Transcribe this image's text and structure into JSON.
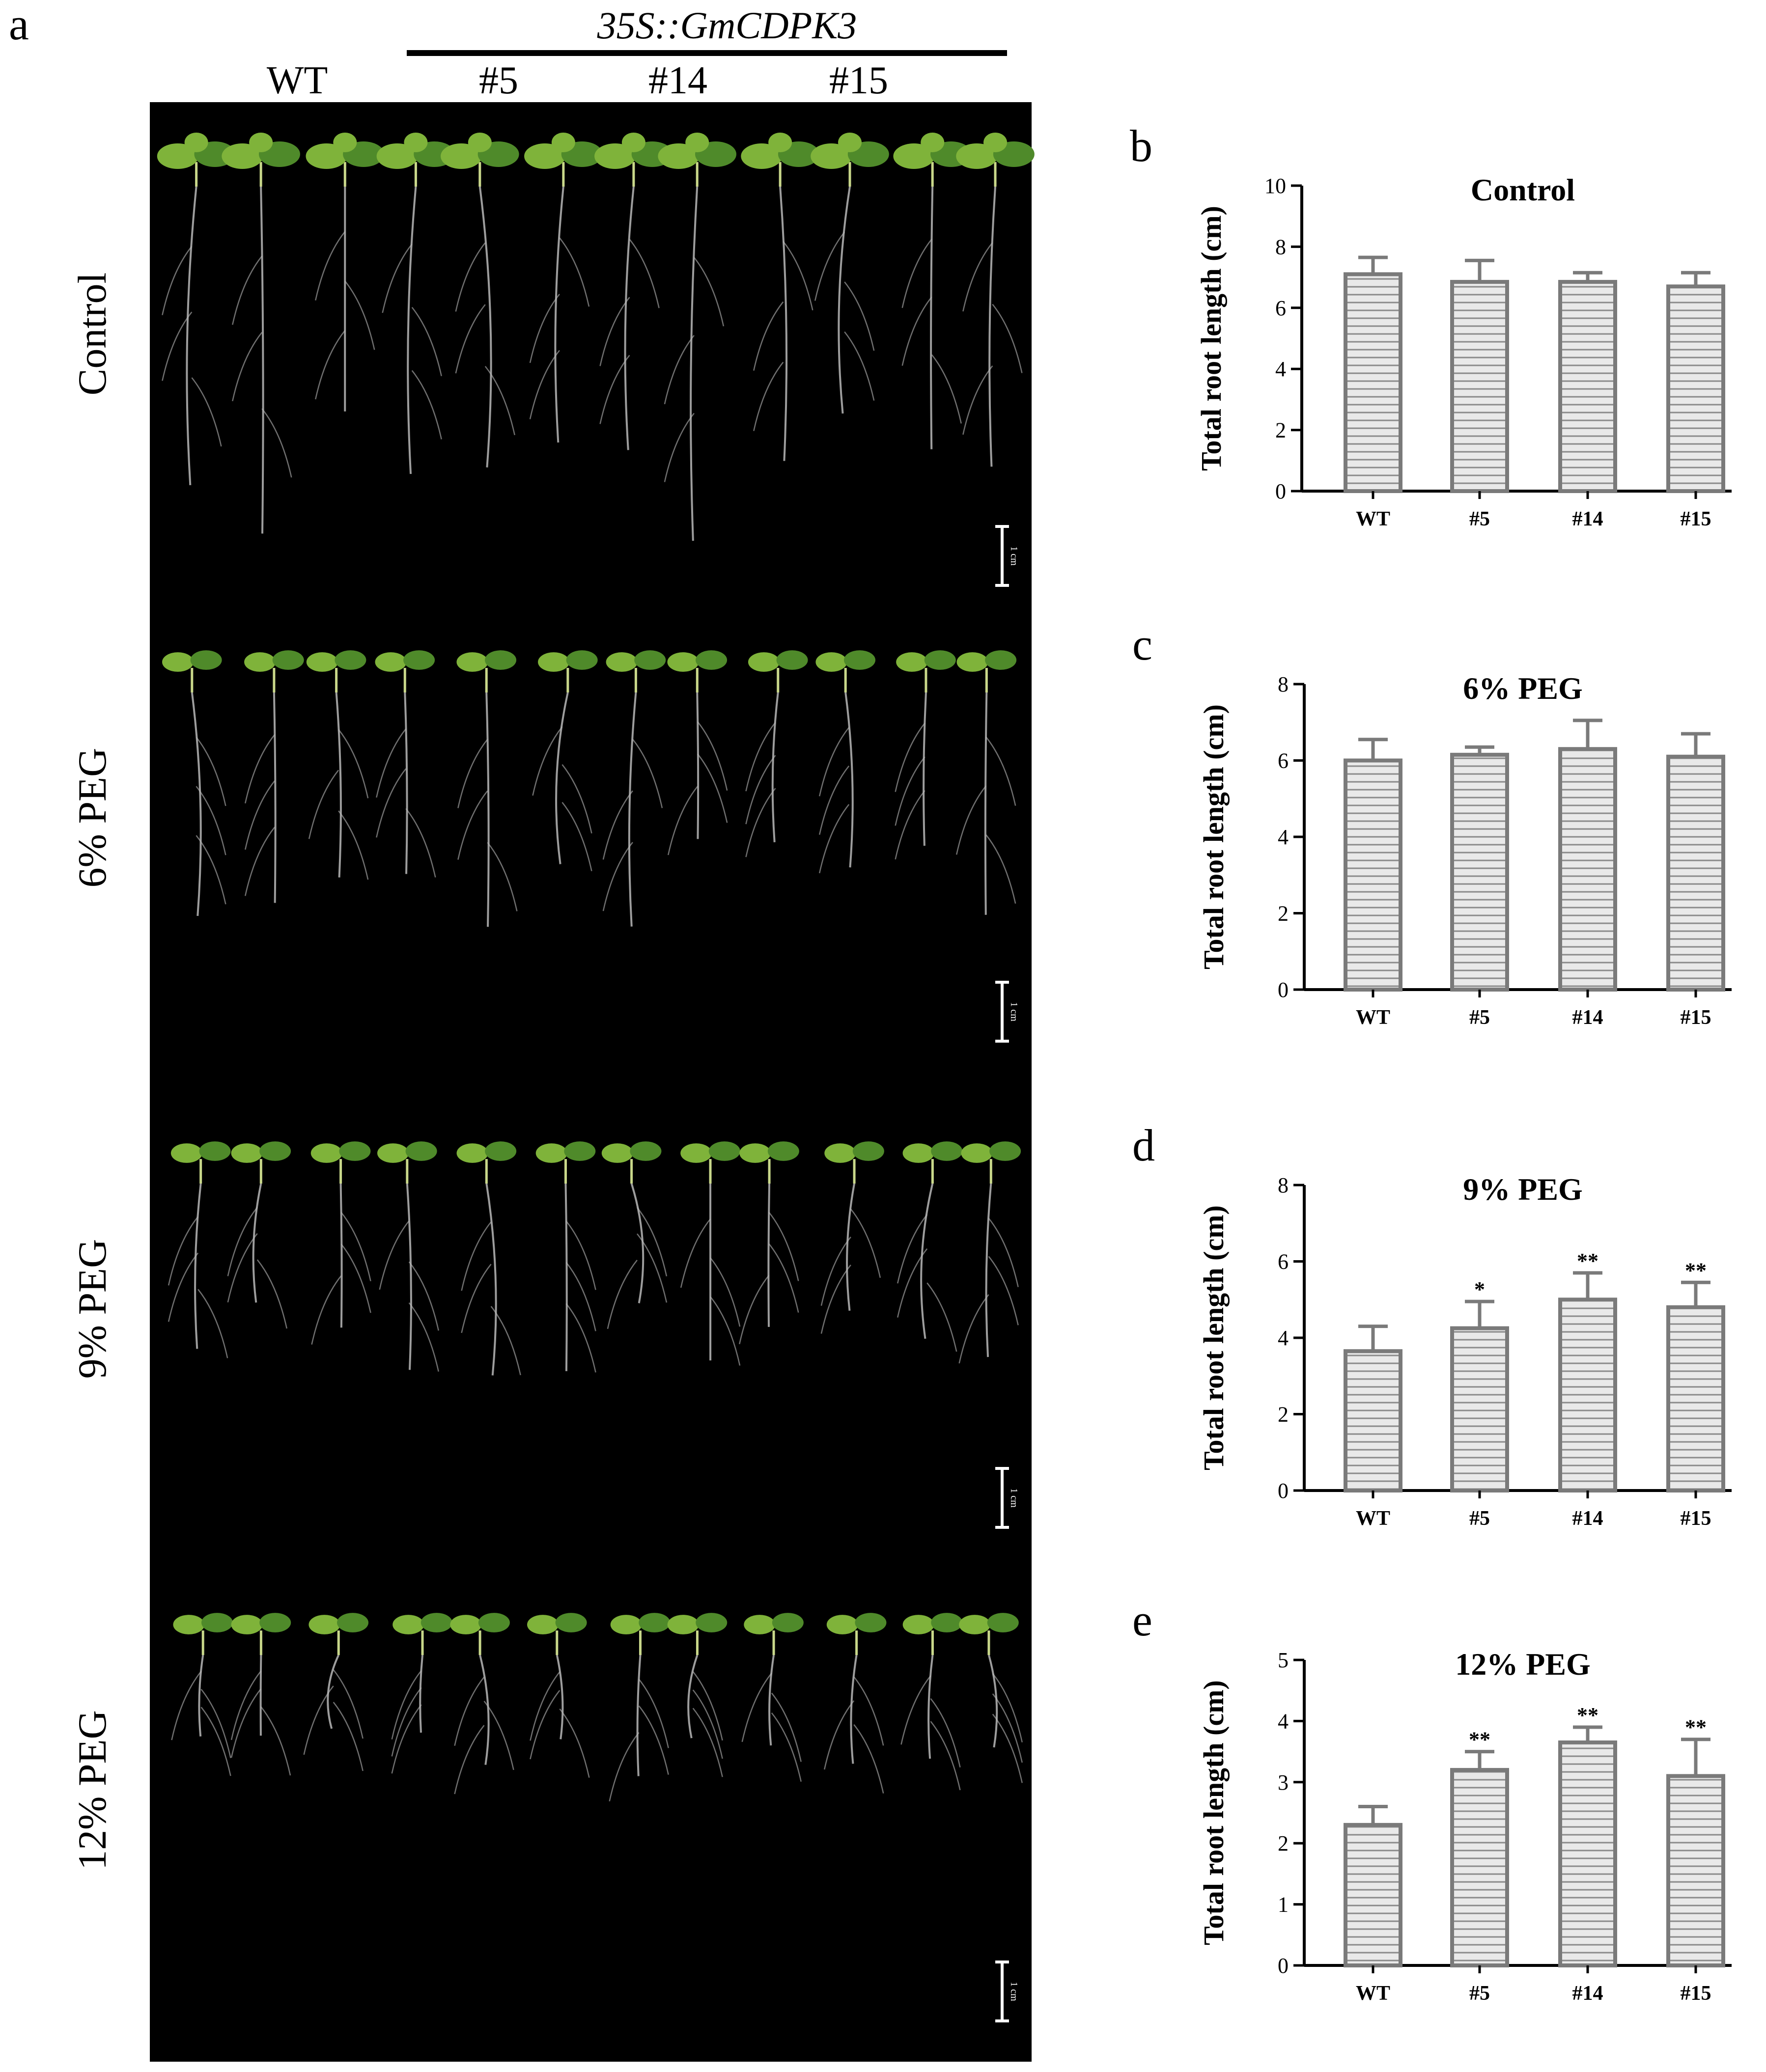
{
  "panel_a": {
    "letter": "a",
    "construct": "35S::GmCDPK3",
    "genotypes": [
      "WT",
      "#5",
      "#14",
      "#15"
    ],
    "rows": [
      {
        "label": "Control",
        "scale": "1 cm"
      },
      {
        "label": "6% PEG",
        "scale": "1 cm"
      },
      {
        "label": "9% PEG",
        "scale": "1 cm"
      },
      {
        "label": "12% PEG",
        "scale": "1 cm"
      }
    ],
    "colors": {
      "background": "#000000",
      "leaf": "#7fb33a",
      "leaf_dark": "#4f8a2a",
      "root": "#b9b9b9"
    }
  },
  "chart_data": [
    {
      "letter": "b",
      "type": "bar",
      "title": "Control",
      "ylabel": "Total root length (cm)",
      "categories": [
        "WT",
        "#5",
        "#14",
        "#15"
      ],
      "values": [
        7.1,
        6.85,
        6.85,
        6.7
      ],
      "errors": [
        0.55,
        0.7,
        0.3,
        0.45
      ],
      "significance": [
        "",
        "",
        "",
        ""
      ],
      "ylim": [
        0,
        10
      ],
      "yticks": [
        0,
        2,
        4,
        6,
        8,
        10
      ]
    },
    {
      "letter": "c",
      "type": "bar",
      "title": "6% PEG",
      "ylabel": "Total root length (cm)",
      "categories": [
        "WT",
        "#5",
        "#14",
        "#15"
      ],
      "values": [
        6.0,
        6.15,
        6.3,
        6.1
      ],
      "errors": [
        0.55,
        0.2,
        0.75,
        0.6
      ],
      "significance": [
        "",
        "",
        "",
        ""
      ],
      "ylim": [
        0,
        8
      ],
      "yticks": [
        0,
        2,
        4,
        6,
        8
      ]
    },
    {
      "letter": "d",
      "type": "bar",
      "title": "9% PEG",
      "ylabel": "Total root length (cm)",
      "categories": [
        "WT",
        "#5",
        "#14",
        "#15"
      ],
      "values": [
        3.65,
        4.25,
        5.0,
        4.8
      ],
      "errors": [
        0.65,
        0.7,
        0.7,
        0.65
      ],
      "significance": [
        "",
        "*",
        "**",
        "**"
      ],
      "ylim": [
        0,
        8
      ],
      "yticks": [
        0,
        2,
        4,
        6,
        8
      ]
    },
    {
      "letter": "e",
      "type": "bar",
      "title": "12% PEG",
      "ylabel": "Total root length (cm)",
      "categories": [
        "WT",
        "#5",
        "#14",
        "#15"
      ],
      "values": [
        2.3,
        3.2,
        3.65,
        3.1
      ],
      "errors": [
        0.3,
        0.3,
        0.25,
        0.6
      ],
      "significance": [
        "",
        "**",
        "**",
        "**"
      ],
      "ylim": [
        0,
        5
      ],
      "yticks": [
        0,
        1,
        2,
        3,
        4,
        5
      ]
    }
  ]
}
